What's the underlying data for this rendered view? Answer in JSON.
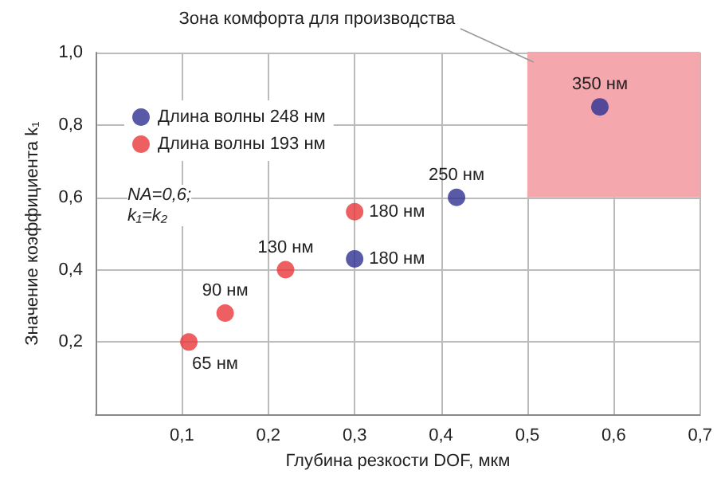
{
  "chart_data": {
    "type": "scatter",
    "xlabel": "Глубина резкости DOF, мкм",
    "ylabel": "Значение коэффициента k₁",
    "series": [
      {
        "name": "Длина волны 248 нм",
        "color": "#2e3192",
        "x": [
          0.3,
          0.418,
          0.584
        ],
        "values": [
          0.43,
          0.6,
          0.85
        ]
      },
      {
        "name": "Длина волны 193 нм",
        "color": "#e8373a",
        "x": [
          0.108,
          0.15,
          0.22,
          0.3
        ],
        "values": [
          0.2,
          0.28,
          0.4,
          0.56
        ]
      },
      {
        "type": "line",
        "color": "#f4a7ad",
        "marker": "none",
        "x": [
          0.5,
          0.7
        ],
        "values": [
          1.0,
          1.0
        ],
        "lower": [
          0.6,
          0.6
        ],
        "upper": [
          1.0,
          1.0
        ]
      }
    ],
    "xlim": [
      0,
      0.7
    ],
    "xticks": [
      {
        "value": 0.1,
        "label": "0,1"
      },
      {
        "value": 0.2,
        "label": "0,2"
      },
      {
        "value": 0.3,
        "label": "0,3"
      },
      {
        "value": 0.4,
        "label": "0,4"
      },
      {
        "value": 0.5,
        "label": "0,5"
      },
      {
        "value": 0.6,
        "label": "0,6"
      },
      {
        "value": 0.7,
        "label": "0,7"
      }
    ],
    "ylim": [
      0,
      1
    ],
    "yticks": [
      {
        "value": 0.2,
        "label": "0,2"
      },
      {
        "value": 0.4,
        "label": "0,4"
      },
      {
        "value": 0.6,
        "label": "0,6"
      },
      {
        "value": 0.8,
        "label": "0,8"
      },
      {
        "value": 1,
        "label": "1,0"
      }
    ],
    "annotations": [
      {
        "text": "180 нм",
        "x": 0.3,
        "y": 0.43
      },
      {
        "text": "250 нм",
        "x": 0.418,
        "y": 0.6
      },
      {
        "text": "350 нм",
        "x": 0.584,
        "y": 0.85
      },
      {
        "text": "65 нм",
        "x": 0.108,
        "y": 0.2
      },
      {
        "text": "90 нм",
        "x": 0.15,
        "y": 0.28
      },
      {
        "text": "130 нм",
        "x": 0.22,
        "y": 0.4
      },
      {
        "text": "180 нм",
        "x": 0.3,
        "y": 0.56
      },
      {
        "text": "Зона комфорта для производства",
        "x": 0.5,
        "y": 1.0
      },
      "NA=0,6;\nk₁=k₂"
    ],
    "grid": true,
    "legend": "top left",
    "marker": "circle"
  }
}
